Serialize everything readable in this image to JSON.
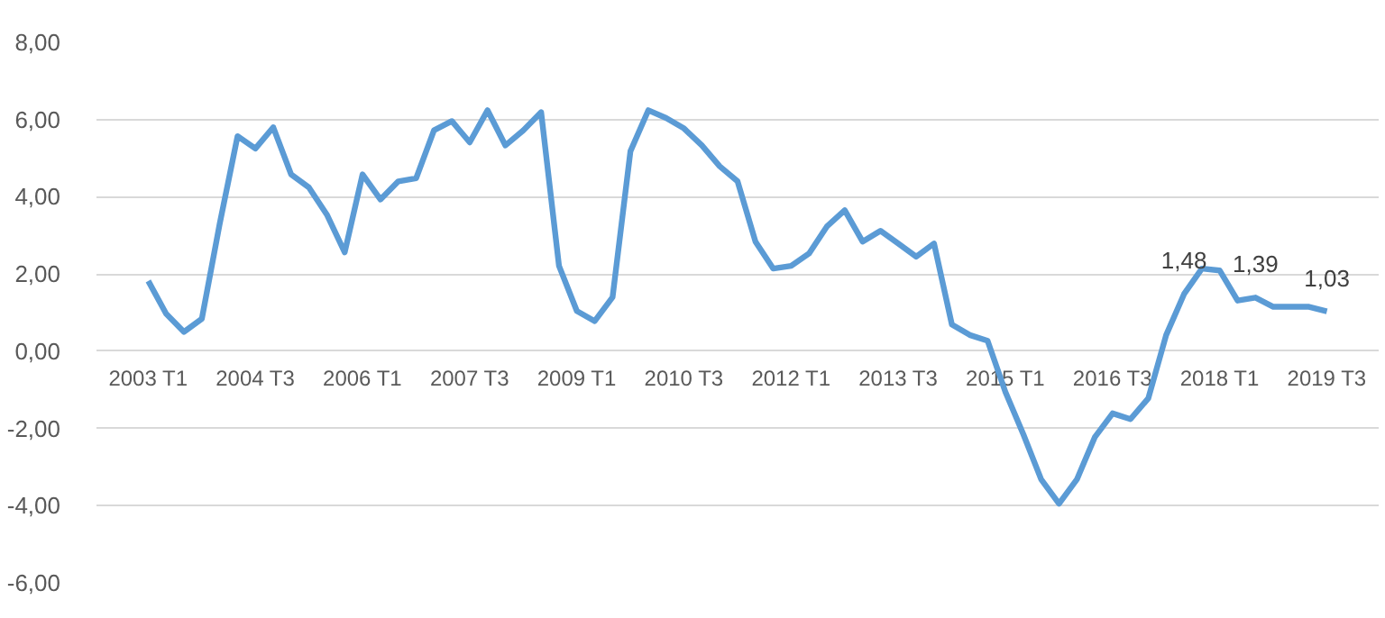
{
  "chart_data": {
    "type": "line",
    "categories": [
      "2003 T1",
      null,
      null,
      null,
      null,
      null,
      "2004 T3",
      null,
      null,
      null,
      null,
      null,
      "2006 T1",
      null,
      null,
      null,
      null,
      null,
      "2007 T3",
      null,
      null,
      null,
      null,
      null,
      "2009 T1",
      null,
      null,
      null,
      null,
      null,
      "2010 T3",
      null,
      null,
      null,
      null,
      null,
      "2012 T1",
      null,
      null,
      null,
      null,
      null,
      "2013 T3",
      null,
      null,
      null,
      null,
      null,
      "2015 T1",
      null,
      null,
      null,
      null,
      null,
      "2016 T3",
      null,
      null,
      null,
      null,
      null,
      "2018 T1",
      null,
      null,
      null,
      null,
      null,
      "2019 T3"
    ],
    "series": [
      {
        "color": "#5b9bd5",
        "values": [
          1.82,
          0.97,
          0.5,
          0.84,
          3.3,
          5.57,
          5.25,
          5.8,
          4.58,
          4.24,
          3.54,
          2.56,
          4.58,
          3.93,
          4.4,
          4.48,
          5.72,
          5.96,
          5.41,
          6.24,
          5.33,
          5.72,
          6.19,
          2.21,
          1.04,
          0.78,
          1.4,
          5.18,
          6.24,
          6.04,
          5.77,
          5.33,
          4.79,
          4.4,
          2.84,
          2.14,
          2.21,
          2.53,
          3.23,
          3.65,
          2.84,
          3.12,
          2.79,
          2.45,
          2.79,
          0.69,
          0.42,
          0.27,
          -1.06,
          -2.15,
          -3.32,
          -3.95,
          -3.32,
          -2.23,
          -1.61,
          -1.76,
          -1.22,
          0.42,
          1.48,
          2.14,
          2.09,
          1.31,
          1.39,
          1.15,
          1.15,
          1.15,
          1.03
        ],
        "value_labels": [
          null,
          null,
          null,
          null,
          null,
          null,
          null,
          null,
          null,
          null,
          null,
          null,
          null,
          null,
          null,
          null,
          null,
          null,
          null,
          null,
          null,
          null,
          null,
          null,
          null,
          null,
          null,
          null,
          null,
          null,
          null,
          null,
          null,
          null,
          null,
          null,
          null,
          null,
          null,
          null,
          null,
          null,
          null,
          null,
          null,
          null,
          null,
          null,
          null,
          null,
          null,
          null,
          null,
          null,
          null,
          null,
          null,
          null,
          "1,48",
          null,
          null,
          null,
          "1,39",
          null,
          null,
          null,
          "1,03"
        ]
      }
    ],
    "ylim": [
      -6,
      8
    ],
    "yticks": [
      {
        "value": -6,
        "label": "-6,00"
      },
      {
        "value": -4,
        "label": "-4,00"
      },
      {
        "value": -2,
        "label": "-2,00"
      },
      {
        "value": 0,
        "label": "0,00"
      },
      {
        "value": 2,
        "label": "2,00"
      },
      {
        "value": 4,
        "label": "4,00"
      },
      {
        "value": 6,
        "label": "6,00"
      },
      {
        "value": 8,
        "label": "8,00"
      }
    ],
    "grid": "y",
    "marker": "none",
    "line_style": "solid"
  }
}
